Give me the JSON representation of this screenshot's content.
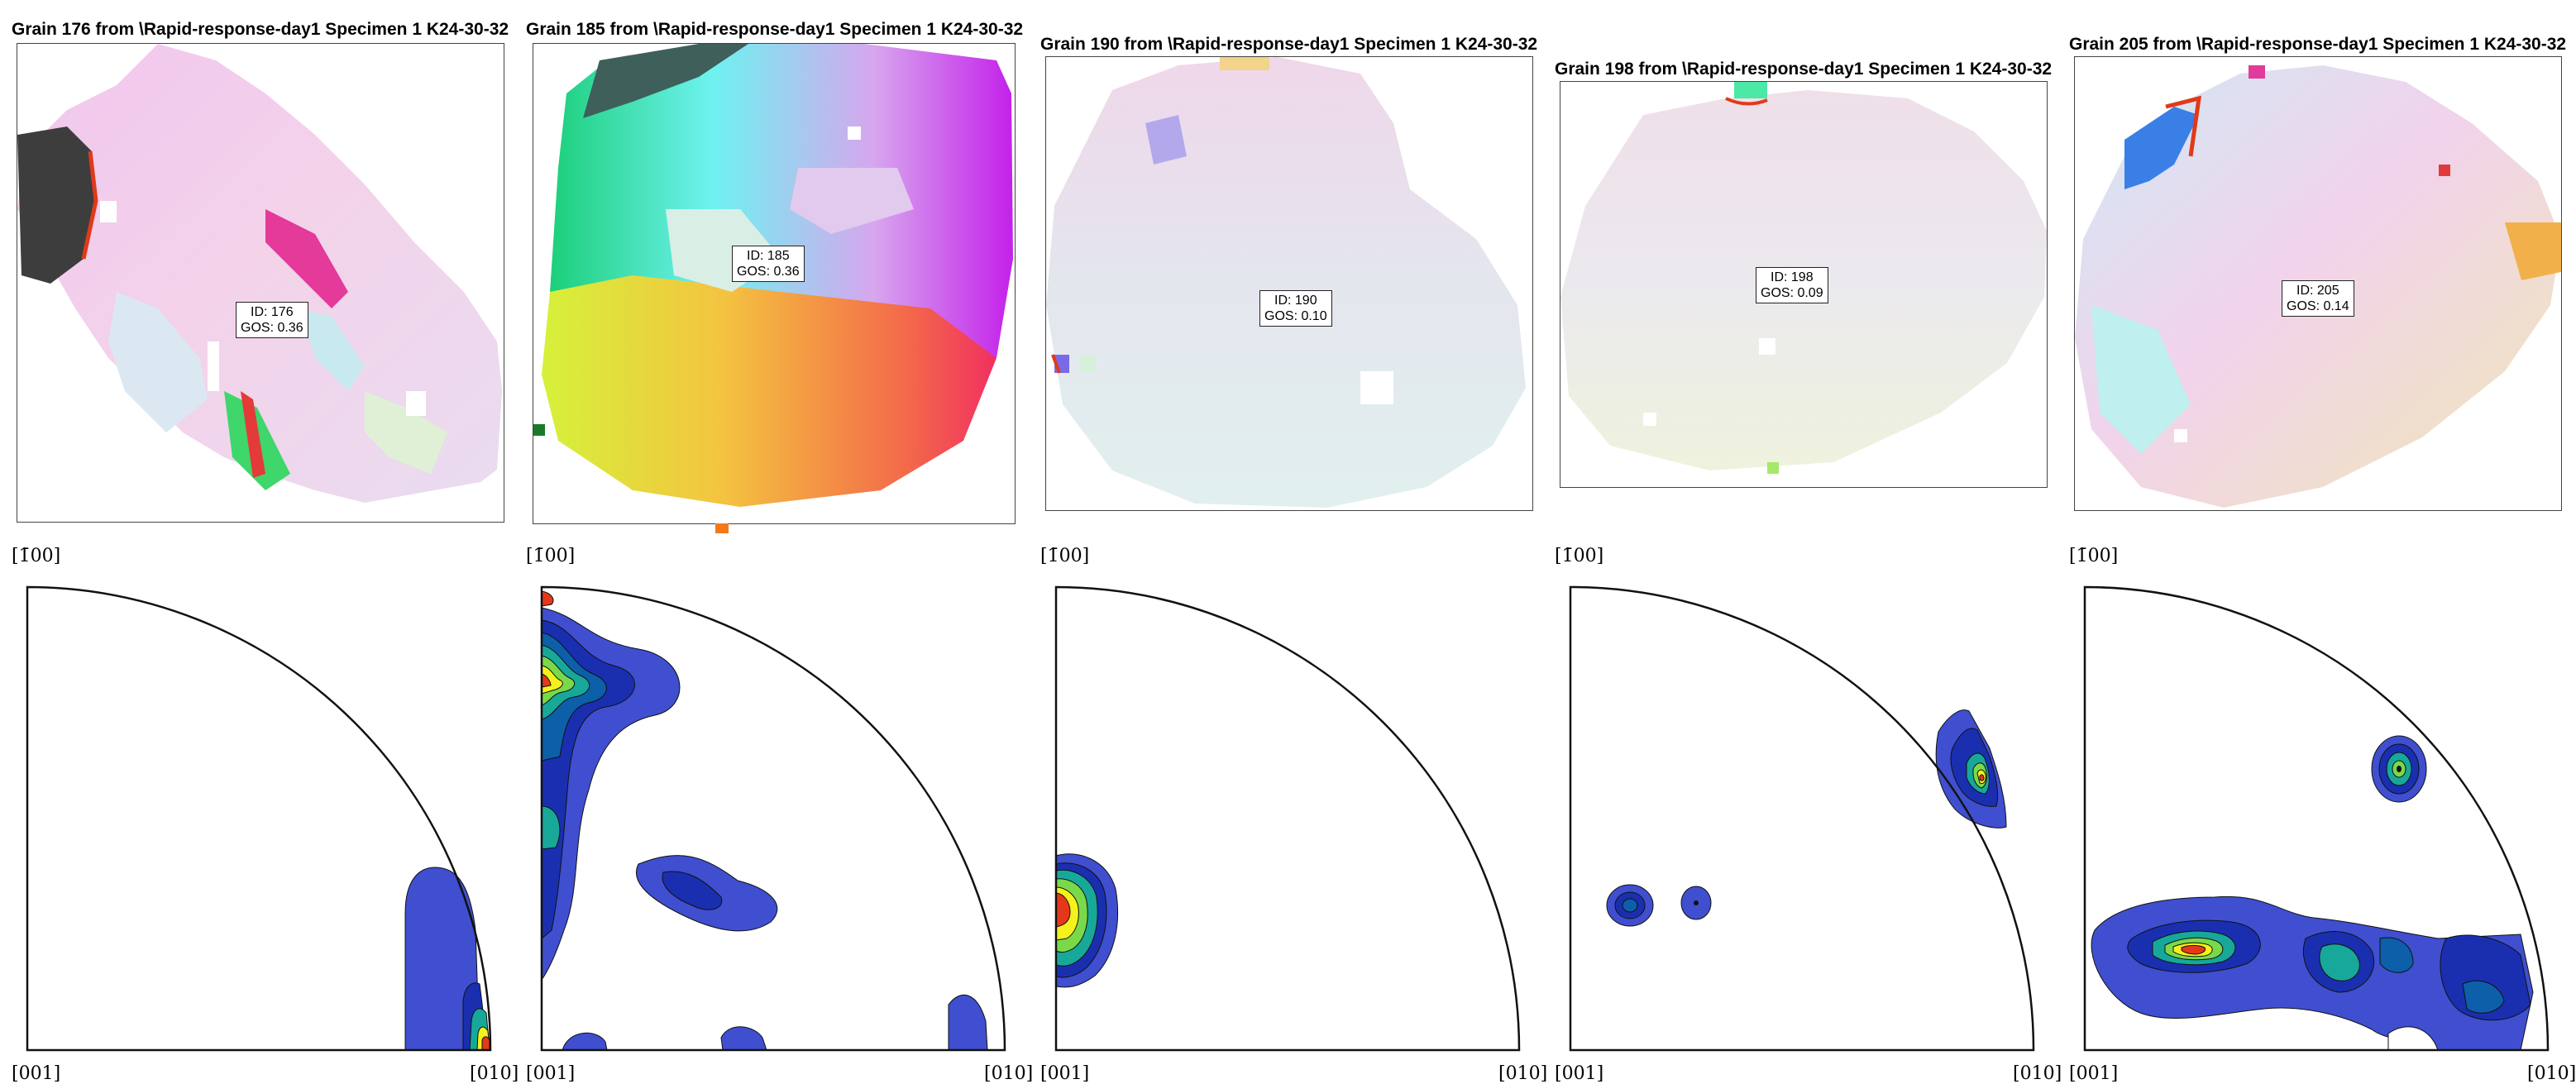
{
  "panels": [
    {
      "title": "Grain 176 from \\Rapid-response-day1 Specimen 1 K24-30-32",
      "id_label": "ID: 176",
      "gos_label": "GOS: 0.36",
      "pole_figure": {
        "top_label": "[1̄00]",
        "bottom_left_label": "[001]",
        "bottom_right_label": "[010]"
      }
    },
    {
      "title": "Grain 185 from \\Rapid-response-day1 Specimen 1 K24-30-32",
      "id_label": "ID: 185",
      "gos_label": "GOS: 0.36",
      "pole_figure": {
        "top_label": "[1̄00]",
        "bottom_left_label": "[001]",
        "bottom_right_label": "[010]"
      }
    },
    {
      "title": "Grain 190 from \\Rapid-response-day1 Specimen 1 K24-30-32",
      "id_label": "ID: 190",
      "gos_label": "GOS: 0.10",
      "pole_figure": {
        "top_label": "[1̄00]",
        "bottom_left_label": "[001]",
        "bottom_right_label": "[010]"
      }
    },
    {
      "title": "Grain 198 from \\Rapid-response-day1 Specimen 1 K24-30-32",
      "id_label": "ID: 198",
      "gos_label": "GOS: 0.09",
      "pole_figure": {
        "top_label": "[1̄00]",
        "bottom_left_label": "[001]",
        "bottom_right_label": "[010]"
      }
    },
    {
      "title": "Grain 205 from \\Rapid-response-day1 Specimen 1 K24-30-32",
      "id_label": "ID: 205",
      "gos_label": "GOS: 0.14",
      "pole_figure": {
        "top_label": "[1̄00]",
        "bottom_left_label": "[001]",
        "bottom_right_label": "[010]"
      }
    }
  ],
  "colors": {
    "contour_levels": [
      "#3f4fcf",
      "#1a2fb0",
      "#0c5fa8",
      "#17a89a",
      "#7ad94a",
      "#f4f21d",
      "#f59b2a",
      "#e5381b"
    ]
  }
}
